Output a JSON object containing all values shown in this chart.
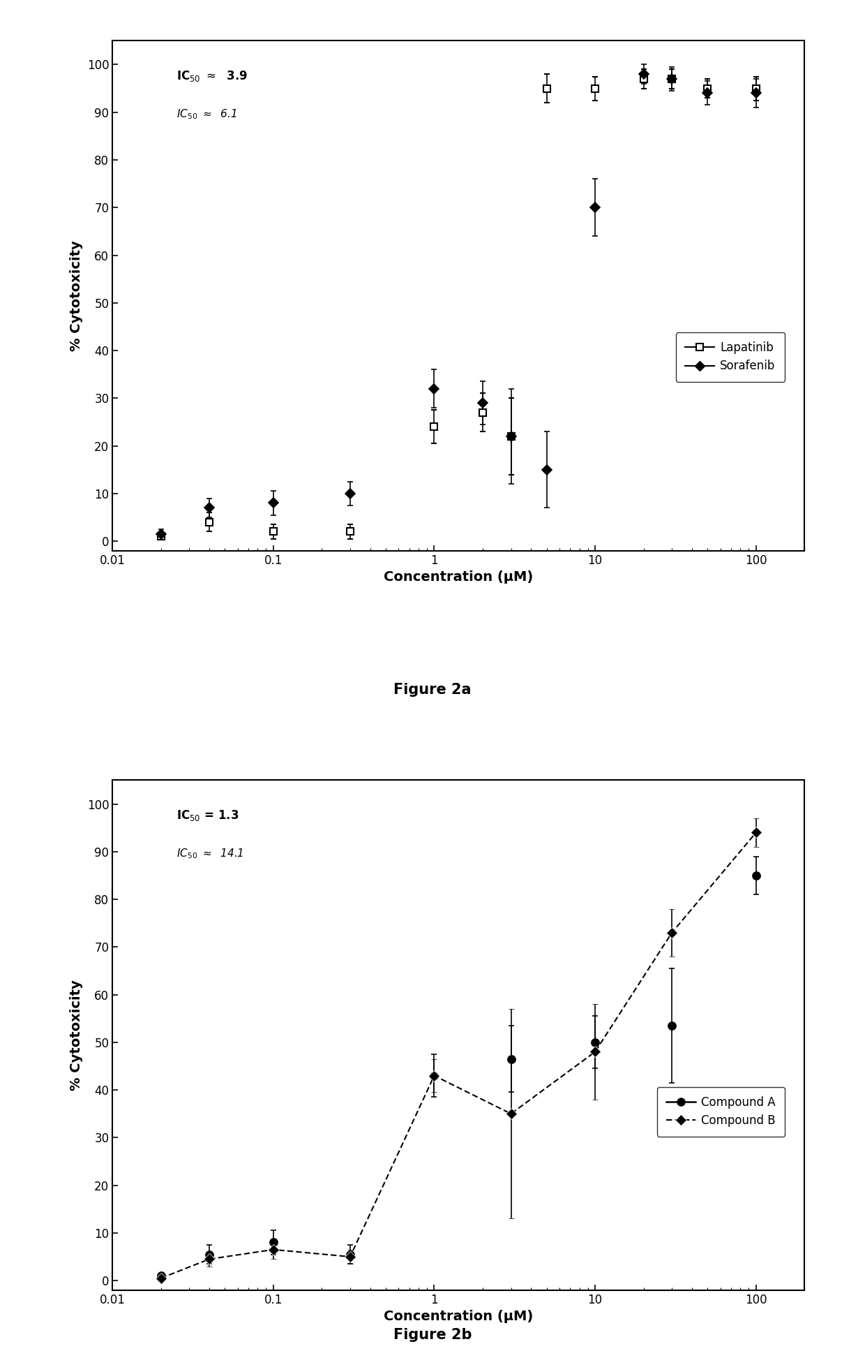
{
  "fig2a": {
    "title": "Figure 2a",
    "ic50_line1_bold": "IC",
    "ic50_val1": "≈  3.9",
    "ic50_val2": "≈  6.1",
    "lapatinib_x": [
      0.02,
      0.04,
      0.1,
      0.3,
      1.0,
      2.0,
      3.0,
      5.0,
      10.0,
      20.0,
      30.0,
      50.0,
      100.0
    ],
    "lapatinib_y": [
      1.0,
      4.0,
      2.0,
      2.0,
      24.0,
      27.0,
      22.0,
      95.0,
      95.0,
      97.0,
      97.0,
      95.0,
      95.0
    ],
    "lapatinib_yerr": [
      0.5,
      2.0,
      1.5,
      1.5,
      3.5,
      4.0,
      8.0,
      3.0,
      2.5,
      2.0,
      2.0,
      2.0,
      2.5
    ],
    "sorafenib_x": [
      0.02,
      0.04,
      0.1,
      0.3,
      1.0,
      2.0,
      3.0,
      5.0,
      10.0,
      20.0,
      30.0,
      50.0,
      100.0
    ],
    "sorafenib_y": [
      1.5,
      7.0,
      8.0,
      10.0,
      32.0,
      29.0,
      22.0,
      15.0,
      70.0,
      98.0,
      97.0,
      94.0,
      94.0
    ],
    "sorafenib_yerr": [
      1.0,
      2.0,
      2.5,
      2.5,
      4.0,
      4.5,
      10.0,
      8.0,
      6.0,
      2.0,
      2.5,
      2.5,
      3.0
    ],
    "xlabel": "Concentration (μM)",
    "ylabel": "% Cytotoxicity",
    "xlim": [
      0.01,
      200
    ],
    "ylim": [
      -2,
      105
    ],
    "yticks": [
      0,
      10,
      20,
      30,
      40,
      50,
      60,
      70,
      80,
      90,
      100
    ]
  },
  "fig2b": {
    "title": "Figure 2b",
    "compA_x": [
      0.02,
      0.04,
      0.1,
      0.3,
      1.0,
      3.0,
      10.0,
      30.0,
      100.0
    ],
    "compA_y": [
      1.0,
      5.5,
      8.0,
      5.5,
      43.0,
      46.5,
      50.0,
      53.5,
      85.0
    ],
    "compA_yerr": [
      0.5,
      2.0,
      2.5,
      2.0,
      4.5,
      7.0,
      5.5,
      12.0,
      4.0
    ],
    "compB_x": [
      0.02,
      0.04,
      0.1,
      0.3,
      1.0,
      3.0,
      10.0,
      30.0,
      100.0
    ],
    "compB_y": [
      0.5,
      4.5,
      6.5,
      5.0,
      43.0,
      35.0,
      48.0,
      73.0,
      94.0
    ],
    "compB_yerr": [
      0.5,
      1.5,
      2.0,
      1.5,
      3.5,
      22.0,
      10.0,
      5.0,
      3.0
    ],
    "xlabel": "Concentration (μM)",
    "ylabel": "% Cytotoxicity",
    "xlim": [
      0.01,
      200
    ],
    "ylim": [
      -2,
      105
    ],
    "yticks": [
      0,
      10,
      20,
      30,
      40,
      50,
      60,
      70,
      80,
      90,
      100
    ]
  },
  "line_color": "#000000",
  "bg_color": "#ffffff",
  "fontsize_label": 14,
  "fontsize_tick": 12,
  "fontsize_legend": 12,
  "fontsize_ic50": 12,
  "fontsize_title": 15
}
